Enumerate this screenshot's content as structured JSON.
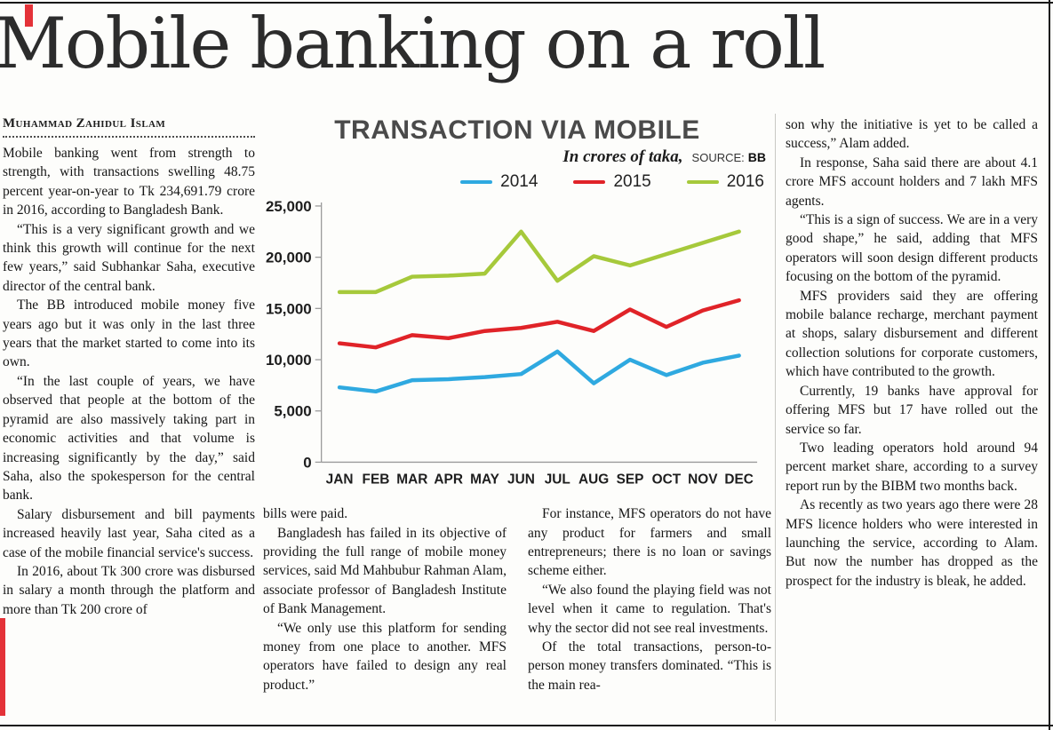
{
  "page": {
    "headline": "Mobile banking on a roll",
    "byline": "Muhammad Zahidul Islam"
  },
  "article": {
    "col1": [
      "Mobile banking went from strength to strength, with transactions swelling 48.75 percent year-on-year to Tk 234,691.79 crore in 2016, according to Bangladesh Bank.",
      "“This is a very significant growth and we think this growth will continue for the next few years,” said Subhankar Saha, executive director of the central bank.",
      "The BB introduced mobile money five years ago but it was only in the last three years that the market started to come into its own.",
      "“In the last couple of years, we have observed that people at the bottom of the pyramid are also massively taking part in economic activities and that volume is increasing significantly by the day,” said Saha, also the spokesperson for the central bank.",
      "Salary disbursement and bill payments increased heavily last year, Saha cited as a case of the mobile financial service's success.",
      "In 2016, about Tk 300 crore was disbursed in salary a month through the platform and more than Tk 200 crore of"
    ],
    "col2": [
      "bills were paid.",
      "Bangladesh has failed in its objective of providing the full range of mobile money services, said Md Mahbubur Rahman Alam, associate professor of Bangladesh Institute of Bank Management.",
      "“We only use this platform for sending money from one place to another. MFS operators have failed to design any real product.”"
    ],
    "col3": [
      "For instance, MFS operators do not have any product for farmers and small entrepreneurs; there is no loan or savings scheme either.",
      "“We also found the playing field was not level when it came to regulation. That's why the sector did not see real investments.",
      "Of the total transactions, person-to-person money transfers dominated. “This is the main rea-"
    ],
    "col4": [
      "son why the initiative is yet to be called a success,” Alam added.",
      "In response, Saha said there are about 4.1 crore MFS account holders and 7 lakh MFS agents.",
      "“This is a sign of success. We are in a very good shape,” he said, adding that MFS operators will soon design different products focusing on the bottom of the pyramid.",
      "MFS providers said they are offering mobile balance recharge, merchant payment at shops, salary disbursement and different collection solutions for corporate customers, which have contributed to the growth.",
      "Currently, 19 banks have approval for offering MFS but 17 have rolled out the service so far.",
      "Two leading operators hold around 94 percent market share, according to a survey report run by the BIBM two months back.",
      "As recently as two years ago there were 28 MFS licence holders who were interested in launching the service, according to Alam. But now the number has dropped as the prospect for the industry is bleak, he added."
    ]
  },
  "chart": {
    "title": "TRANSACTION VIA MOBILE",
    "unit_note": "In crores of taka,",
    "source_label": "SOURCE:",
    "source_value": "BB"
  },
  "chart_data": {
    "type": "line",
    "title": "TRANSACTION VIA MOBILE",
    "unit": "In crores of taka",
    "source": "BB",
    "x": [
      "JAN",
      "FEB",
      "MAR",
      "APR",
      "MAY",
      "JUN",
      "JUL",
      "AUG",
      "SEP",
      "OCT",
      "NOV",
      "DEC"
    ],
    "series": [
      {
        "name": "2014",
        "color": "#2fa9e0",
        "values": [
          7300,
          6900,
          8000,
          8100,
          8300,
          8600,
          10800,
          7700,
          10000,
          8500,
          9700,
          10400
        ]
      },
      {
        "name": "2015",
        "color": "#e02328",
        "values": [
          11600,
          11200,
          12400,
          12100,
          12800,
          13100,
          13700,
          12800,
          14900,
          13200,
          14800,
          15800
        ]
      },
      {
        "name": "2016",
        "color": "#a6c93b",
        "values": [
          16600,
          16600,
          18100,
          18200,
          18400,
          22500,
          17700,
          20100,
          19200,
          20300,
          21400,
          22500
        ]
      }
    ],
    "ylim": [
      0,
      25000
    ],
    "yticks": [
      0,
      5000,
      10000,
      15000,
      20000,
      25000
    ],
    "legend_position": "top-right",
    "grid": false
  }
}
